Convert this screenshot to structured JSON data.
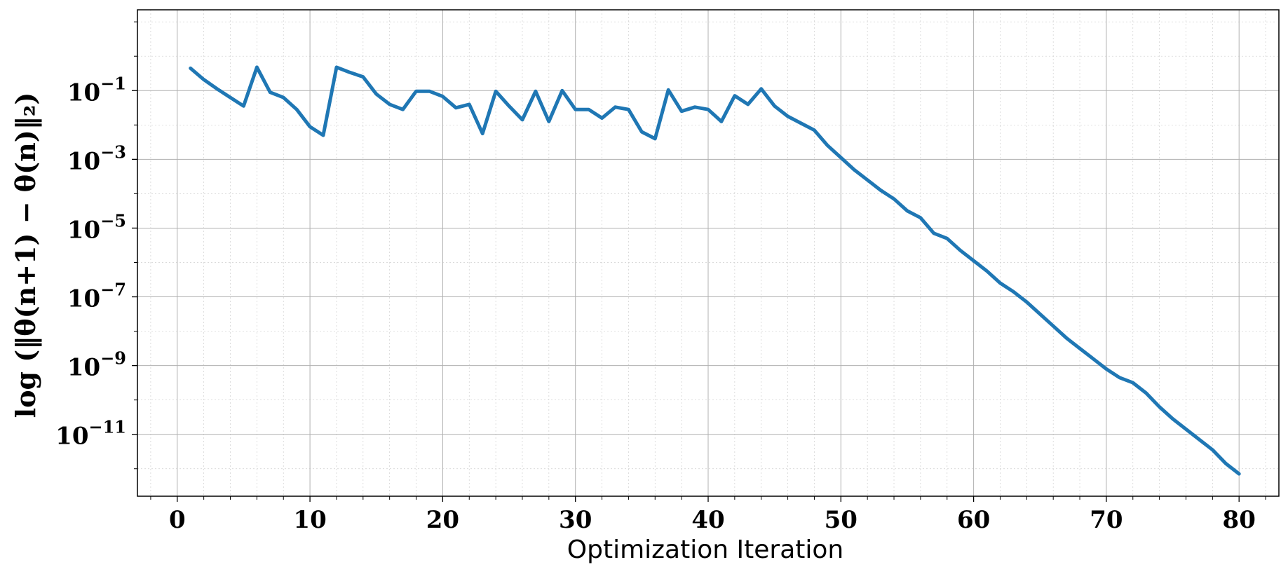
{
  "chart_data": {
    "type": "line",
    "xlabel": "Optimization Iteration",
    "ylabel": "log (‖θ(n+1) − θ(n)‖₂)",
    "xlim": [
      -3,
      83
    ],
    "ylim_log10": [
      -12.8,
      1.35
    ],
    "yscale": "log",
    "grid": true,
    "x_ticks": [
      0,
      10,
      20,
      30,
      40,
      50,
      60,
      70,
      80
    ],
    "x_tick_labels": [
      "0",
      "10",
      "20",
      "30",
      "40",
      "50",
      "60",
      "70",
      "80"
    ],
    "y_tick_exponents": [
      -1,
      -3,
      -5,
      -7,
      -9,
      -11
    ],
    "y_tick_labels": [
      "10",
      "10",
      "10",
      "10",
      "10",
      "10"
    ],
    "y_tick_superscripts": [
      "−1",
      "−3",
      "−5",
      "−7",
      "−9",
      "−11"
    ],
    "series": [
      {
        "color": "#1f77b4",
        "x": [
          1,
          2,
          3,
          4,
          5,
          6,
          7,
          8,
          9,
          10,
          11,
          12,
          13,
          14,
          15,
          16,
          17,
          18,
          19,
          20,
          21,
          22,
          23,
          24,
          25,
          26,
          27,
          28,
          29,
          30,
          31,
          32,
          33,
          34,
          35,
          36,
          37,
          38,
          39,
          40,
          41,
          42,
          43,
          44,
          45,
          46,
          47,
          48,
          49,
          50,
          51,
          52,
          53,
          54,
          55,
          56,
          57,
          58,
          59,
          60,
          61,
          62,
          63,
          64,
          65,
          66,
          67,
          68,
          69,
          70,
          71,
          72,
          73,
          74,
          75,
          76,
          77,
          78,
          79,
          80
        ],
        "log10_y": [
          -0.35,
          -0.68,
          -0.95,
          -1.2,
          -1.45,
          -0.32,
          -1.05,
          -1.2,
          -1.55,
          -2.05,
          -2.3,
          -0.32,
          -0.47,
          -0.6,
          -1.1,
          -1.4,
          -1.55,
          -1.02,
          -1.02,
          -1.17,
          -1.5,
          -1.4,
          -2.25,
          -1.02,
          -1.45,
          -1.85,
          -1.02,
          -1.9,
          -1.0,
          -1.55,
          -1.55,
          -1.8,
          -1.48,
          -1.55,
          -2.2,
          -2.4,
          -0.98,
          -1.6,
          -1.48,
          -1.55,
          -1.9,
          -1.15,
          -1.4,
          -0.95,
          -1.45,
          -1.75,
          -1.95,
          -2.15,
          -2.6,
          -2.95,
          -3.3,
          -3.6,
          -3.9,
          -4.15,
          -4.5,
          -4.7,
          -5.15,
          -5.3,
          -5.65,
          -5.95,
          -6.25,
          -6.6,
          -6.85,
          -7.15,
          -7.5,
          -7.85,
          -8.2,
          -8.5,
          -8.8,
          -9.1,
          -9.35,
          -9.5,
          -9.8,
          -10.2,
          -10.55,
          -10.85,
          -11.15,
          -11.45,
          -11.85,
          -12.15
        ]
      }
    ]
  }
}
